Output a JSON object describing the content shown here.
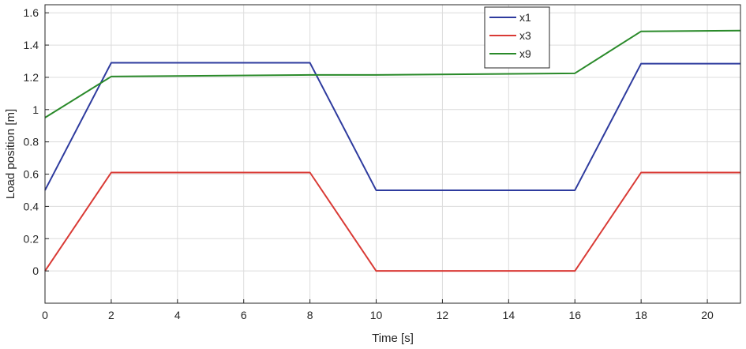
{
  "chart_data": {
    "type": "line",
    "xlabel": "Time [s]",
    "ylabel": "Load position [m]",
    "xlim": [
      0,
      21
    ],
    "ylim": [
      -0.2,
      1.65
    ],
    "xticks": [
      0,
      2,
      4,
      6,
      8,
      10,
      12,
      14,
      16,
      18,
      20
    ],
    "yticks": [
      0,
      0.2,
      0.4,
      0.6,
      0.8,
      1,
      1.2,
      1.4,
      1.6
    ],
    "grid": true,
    "legend_position": "top-center",
    "series": [
      {
        "name": "x1",
        "color": "#2e3b9e",
        "x": [
          0,
          2,
          8,
          10,
          16,
          18,
          21
        ],
        "y": [
          0.5,
          1.29,
          1.29,
          0.5,
          0.5,
          1.285,
          1.285
        ]
      },
      {
        "name": "x3",
        "color": "#d93a35",
        "x": [
          0,
          2,
          8,
          10,
          16,
          18,
          21
        ],
        "y": [
          0.0,
          0.61,
          0.61,
          0.0,
          0.0,
          0.61,
          0.61
        ]
      },
      {
        "name": "x9",
        "color": "#2a8a2a",
        "x": [
          0,
          2,
          8,
          10,
          16,
          18,
          21
        ],
        "y": [
          0.95,
          1.205,
          1.215,
          1.215,
          1.225,
          1.485,
          1.49
        ]
      }
    ]
  }
}
